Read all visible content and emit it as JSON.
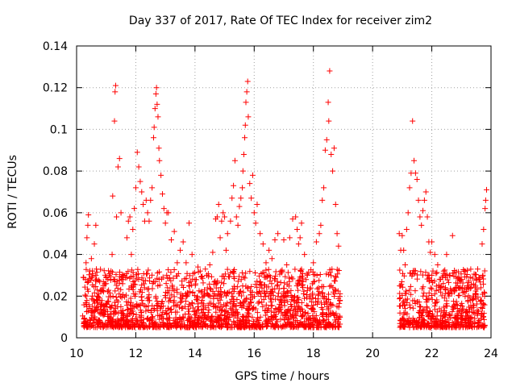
{
  "chart_data": {
    "type": "scatter",
    "title": "Day 337 of 2017, Rate Of TEC Index for receiver zim2",
    "xlabel": "GPS time / hours",
    "ylabel": "ROTI / TECUs",
    "xlim": [
      10,
      24
    ],
    "ylim": [
      0,
      0.14
    ],
    "x_ticks": [
      "10",
      "12",
      "14",
      "16",
      "18",
      "20",
      "22",
      "24"
    ],
    "y_ticks": [
      "0",
      "0.02",
      "0.04",
      "0.06",
      "0.08",
      "0.1",
      "0.12",
      "0.14"
    ],
    "grid": true,
    "marker": "+",
    "color": "#ff0000",
    "data_gap_hours": [
      18.9,
      20.9
    ],
    "series": [
      {
        "name": "ROTI",
        "points": [
          [
            10.25,
            0.009
          ],
          [
            10.3,
            0.028
          ],
          [
            10.32,
            0.036
          ],
          [
            10.35,
            0.048
          ],
          [
            10.38,
            0.054
          ],
          [
            10.4,
            0.059
          ],
          [
            10.45,
            0.032
          ],
          [
            10.5,
            0.038
          ],
          [
            10.55,
            0.012
          ],
          [
            10.6,
            0.045
          ],
          [
            10.65,
            0.054
          ],
          [
            10.7,
            0.02
          ],
          [
            10.8,
            0.015
          ],
          [
            10.9,
            0.025
          ],
          [
            11.0,
            0.026
          ],
          [
            11.1,
            0.03
          ],
          [
            11.2,
            0.04
          ],
          [
            11.22,
            0.068
          ],
          [
            11.28,
            0.104
          ],
          [
            11.3,
            0.118
          ],
          [
            11.32,
            0.121
          ],
          [
            11.35,
            0.058
          ],
          [
            11.4,
            0.082
          ],
          [
            11.45,
            0.086
          ],
          [
            11.5,
            0.06
          ],
          [
            11.6,
            0.03
          ],
          [
            11.7,
            0.048
          ],
          [
            11.75,
            0.056
          ],
          [
            11.8,
            0.058
          ],
          [
            11.85,
            0.04
          ],
          [
            11.9,
            0.052
          ],
          [
            11.95,
            0.062
          ],
          [
            12.0,
            0.072
          ],
          [
            12.05,
            0.089
          ],
          [
            12.1,
            0.082
          ],
          [
            12.15,
            0.075
          ],
          [
            12.2,
            0.07
          ],
          [
            12.25,
            0.064
          ],
          [
            12.3,
            0.056
          ],
          [
            12.35,
            0.066
          ],
          [
            12.4,
            0.06
          ],
          [
            12.45,
            0.056
          ],
          [
            12.5,
            0.066
          ],
          [
            12.55,
            0.072
          ],
          [
            12.6,
            0.096
          ],
          [
            12.62,
            0.101
          ],
          [
            12.65,
            0.11
          ],
          [
            12.68,
            0.117
          ],
          [
            12.7,
            0.12
          ],
          [
            12.72,
            0.112
          ],
          [
            12.75,
            0.106
          ],
          [
            12.78,
            0.091
          ],
          [
            12.8,
            0.085
          ],
          [
            12.85,
            0.078
          ],
          [
            12.9,
            0.069
          ],
          [
            12.95,
            0.062
          ],
          [
            13.0,
            0.055
          ],
          [
            13.05,
            0.06
          ],
          [
            13.1,
            0.06
          ],
          [
            13.2,
            0.047
          ],
          [
            13.3,
            0.051
          ],
          [
            13.4,
            0.036
          ],
          [
            13.5,
            0.042
          ],
          [
            13.6,
            0.046
          ],
          [
            13.7,
            0.036
          ],
          [
            13.8,
            0.055
          ],
          [
            13.9,
            0.04
          ],
          [
            14.0,
            0.028
          ],
          [
            14.1,
            0.034
          ],
          [
            14.2,
            0.022
          ],
          [
            14.3,
            0.02
          ],
          [
            14.4,
            0.03
          ],
          [
            14.5,
            0.035
          ],
          [
            14.6,
            0.041
          ],
          [
            14.7,
            0.057
          ],
          [
            14.75,
            0.058
          ],
          [
            14.8,
            0.064
          ],
          [
            14.85,
            0.048
          ],
          [
            14.9,
            0.056
          ],
          [
            14.95,
            0.06
          ],
          [
            15.0,
            0.058
          ],
          [
            15.05,
            0.042
          ],
          [
            15.1,
            0.05
          ],
          [
            15.2,
            0.056
          ],
          [
            15.25,
            0.067
          ],
          [
            15.3,
            0.073
          ],
          [
            15.35,
            0.085
          ],
          [
            15.4,
            0.058
          ],
          [
            15.45,
            0.054
          ],
          [
            15.5,
            0.063
          ],
          [
            15.55,
            0.067
          ],
          [
            15.6,
            0.072
          ],
          [
            15.62,
            0.08
          ],
          [
            15.65,
            0.088
          ],
          [
            15.68,
            0.096
          ],
          [
            15.7,
            0.102
          ],
          [
            15.72,
            0.113
          ],
          [
            15.75,
            0.118
          ],
          [
            15.78,
            0.123
          ],
          [
            15.8,
            0.106
          ],
          [
            15.85,
            0.074
          ],
          [
            15.9,
            0.067
          ],
          [
            15.95,
            0.078
          ],
          [
            16.0,
            0.06
          ],
          [
            16.05,
            0.055
          ],
          [
            16.1,
            0.064
          ],
          [
            16.2,
            0.05
          ],
          [
            16.3,
            0.045
          ],
          [
            16.4,
            0.036
          ],
          [
            16.5,
            0.042
          ],
          [
            16.6,
            0.038
          ],
          [
            16.7,
            0.047
          ],
          [
            16.8,
            0.05
          ],
          [
            16.9,
            0.032
          ],
          [
            17.0,
            0.047
          ],
          [
            17.1,
            0.035
          ],
          [
            17.2,
            0.048
          ],
          [
            17.3,
            0.057
          ],
          [
            17.4,
            0.058
          ],
          [
            17.45,
            0.052
          ],
          [
            17.5,
            0.045
          ],
          [
            17.55,
            0.048
          ],
          [
            17.6,
            0.055
          ],
          [
            17.7,
            0.04
          ],
          [
            17.8,
            0.03
          ],
          [
            17.9,
            0.024
          ],
          [
            18.0,
            0.036
          ],
          [
            18.1,
            0.046
          ],
          [
            18.2,
            0.05
          ],
          [
            18.25,
            0.054
          ],
          [
            18.3,
            0.066
          ],
          [
            18.35,
            0.072
          ],
          [
            18.4,
            0.09
          ],
          [
            18.45,
            0.095
          ],
          [
            18.5,
            0.113
          ],
          [
            18.52,
            0.104
          ],
          [
            18.55,
            0.128
          ],
          [
            18.6,
            0.088
          ],
          [
            18.65,
            0.08
          ],
          [
            18.7,
            0.091
          ],
          [
            18.75,
            0.064
          ],
          [
            18.8,
            0.05
          ],
          [
            18.85,
            0.044
          ],
          [
            20.9,
            0.05
          ],
          [
            20.95,
            0.042
          ],
          [
            21.0,
            0.049
          ],
          [
            21.05,
            0.042
          ],
          [
            21.1,
            0.035
          ],
          [
            21.15,
            0.052
          ],
          [
            21.2,
            0.06
          ],
          [
            21.25,
            0.072
          ],
          [
            21.3,
            0.079
          ],
          [
            21.35,
            0.104
          ],
          [
            21.4,
            0.085
          ],
          [
            21.45,
            0.079
          ],
          [
            21.5,
            0.076
          ],
          [
            21.55,
            0.066
          ],
          [
            21.6,
            0.058
          ],
          [
            21.65,
            0.054
          ],
          [
            21.7,
            0.061
          ],
          [
            21.75,
            0.066
          ],
          [
            21.8,
            0.07
          ],
          [
            21.85,
            0.058
          ],
          [
            21.9,
            0.046
          ],
          [
            21.95,
            0.041
          ],
          [
            22.0,
            0.046
          ],
          [
            22.1,
            0.04
          ],
          [
            22.2,
            0.035
          ],
          [
            22.3,
            0.028
          ],
          [
            22.4,
            0.032
          ],
          [
            22.5,
            0.04
          ],
          [
            22.6,
            0.03
          ],
          [
            22.7,
            0.049
          ],
          [
            22.8,
            0.024
          ],
          [
            22.9,
            0.024
          ],
          [
            23.0,
            0.028
          ],
          [
            23.1,
            0.032
          ],
          [
            23.2,
            0.025
          ],
          [
            23.3,
            0.018
          ],
          [
            23.4,
            0.02
          ],
          [
            23.5,
            0.021
          ],
          [
            23.6,
            0.028
          ],
          [
            23.7,
            0.045
          ],
          [
            23.75,
            0.052
          ],
          [
            23.8,
            0.062
          ],
          [
            23.82,
            0.066
          ],
          [
            23.85,
            0.071
          ]
        ]
      }
    ]
  }
}
